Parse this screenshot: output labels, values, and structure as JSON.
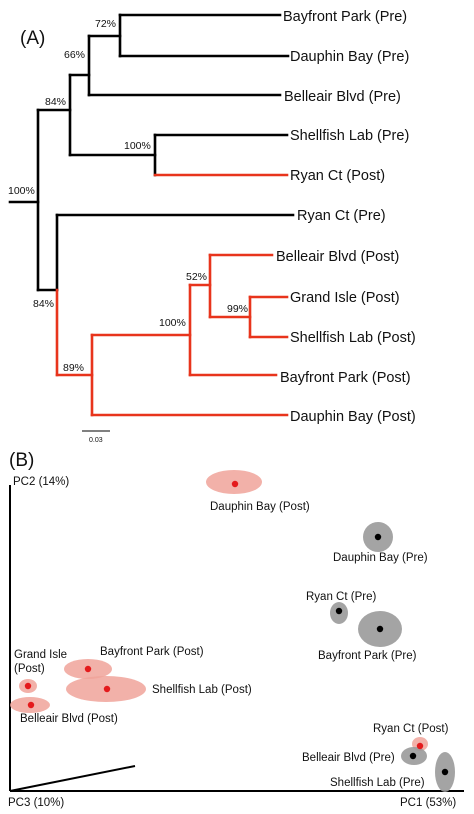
{
  "panel_a": {
    "label": "(A)",
    "scale_bar": "0.03",
    "leaves": [
      {
        "id": "bayfront_pre",
        "label": "Bayfront Park (Pre)"
      },
      {
        "id": "dauphin_pre",
        "label": "Dauphin Bay (Pre)"
      },
      {
        "id": "belleair_pre",
        "label": "Belleair Blvd (Pre)"
      },
      {
        "id": "shellfish_pre",
        "label": "Shellfish Lab (Pre)"
      },
      {
        "id": "ryan_post",
        "label": "Ryan Ct (Post)"
      },
      {
        "id": "ryan_pre",
        "label": "Ryan Ct (Pre)"
      },
      {
        "id": "belleair_post",
        "label": "Belleair Blvd (Post)"
      },
      {
        "id": "grand_post",
        "label": "Grand Isle (Post)"
      },
      {
        "id": "shellfish_post",
        "label": "Shellfish Lab (Post)"
      },
      {
        "id": "bayfront_post",
        "label": "Bayfront Park (Post)"
      },
      {
        "id": "dauphin_post",
        "label": "Dauphin Bay (Post)"
      }
    ],
    "bootstrap": [
      {
        "id": "root",
        "value": "100%"
      },
      {
        "id": "n84a",
        "value": "84%"
      },
      {
        "id": "n66",
        "value": "66%"
      },
      {
        "id": "n72",
        "value": "72%"
      },
      {
        "id": "n100a",
        "value": "100%"
      },
      {
        "id": "n84b",
        "value": "84%"
      },
      {
        "id": "n89",
        "value": "89%"
      },
      {
        "id": "n100b",
        "value": "100%"
      },
      {
        "id": "n52",
        "value": "52%"
      },
      {
        "id": "n99",
        "value": "99%"
      }
    ],
    "colors": {
      "pre": "#000000",
      "post": "#e8341c"
    }
  },
  "panel_b": {
    "label": "(B)",
    "axis_pc1": "PC1 (53%)",
    "axis_pc2": "PC2 (14%)",
    "axis_pc3": "PC3 (10%)",
    "colors": {
      "post_fill": "#f0a39a",
      "post_dot": "#e41a1c",
      "pre_fill": "#9a9a9a",
      "pre_dot": "#000000"
    },
    "points": [
      {
        "id": "dauphin_post",
        "label": "Dauphin Bay (Post)",
        "group": "post"
      },
      {
        "id": "dauphin_pre",
        "label": "Dauphin Bay (Pre)",
        "group": "pre"
      },
      {
        "id": "ryan_pre",
        "label": "Ryan Ct (Pre)",
        "group": "pre"
      },
      {
        "id": "bayfront_pre",
        "label": "Bayfront Park (Pre)",
        "group": "pre"
      },
      {
        "id": "bayfront_post",
        "label": "Bayfront Park (Post)",
        "group": "post"
      },
      {
        "id": "shellfish_post",
        "label": "Shellfish Lab (Post)",
        "group": "post"
      },
      {
        "id": "grand_post",
        "label": "Grand Isle\n(Post)",
        "group": "post"
      },
      {
        "id": "belleair_post",
        "label": "Belleair Blvd (Post)",
        "group": "post"
      },
      {
        "id": "ryan_post",
        "label": "Ryan Ct (Post)",
        "group": "post"
      },
      {
        "id": "belleair_pre",
        "label": "Belleair Blvd (Pre)",
        "group": "pre"
      },
      {
        "id": "shellfish_pre",
        "label": "Shellfish Lab (Pre)",
        "group": "pre"
      }
    ]
  }
}
